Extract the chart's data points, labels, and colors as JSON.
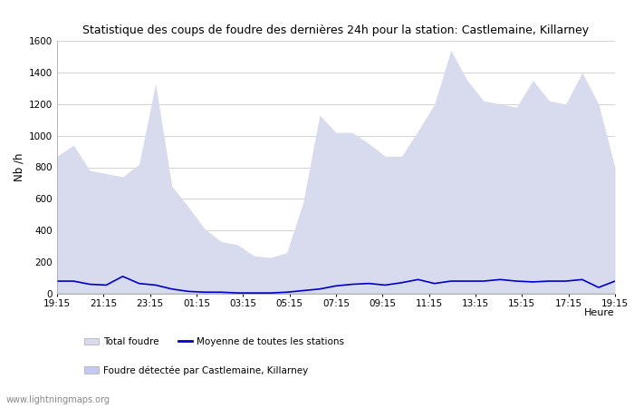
{
  "title": "Statistique des coups de foudre des dernières 24h pour la station: Castlemaine, Killarney",
  "xlabel": "Heure",
  "ylabel": "Nb /h",
  "ylim": [
    0,
    1600
  ],
  "yticks": [
    0,
    200,
    400,
    600,
    800,
    1000,
    1200,
    1400,
    1600
  ],
  "xtick_labels": [
    "19:15",
    "21:15",
    "23:15",
    "01:15",
    "03:15",
    "05:15",
    "07:15",
    "09:15",
    "11:15",
    "13:15",
    "15:15",
    "17:15",
    "19:15"
  ],
  "bg_color": "#ffffff",
  "grid_color": "#cccccc",
  "fill_total_color": "#d8daee",
  "fill_station_color": "#c4c8f4",
  "line_color": "#0000cc",
  "watermark": "www.lightningmaps.org",
  "legend_total": "Total foudre",
  "legend_avg": "Moyenne de toutes les stations",
  "legend_station": "Foudre détectée par Castlemaine, Killarney",
  "total_foudre": [
    870,
    940,
    780,
    760,
    740,
    820,
    1330,
    680,
    550,
    410,
    330,
    310,
    240,
    230,
    260,
    580,
    1130,
    1020,
    1020,
    950,
    870,
    870,
    1030,
    1200,
    1540,
    1350,
    1220,
    1200,
    1180,
    1350,
    1220,
    1200,
    1400,
    1200,
    800
  ],
  "avg_line": [
    80,
    80,
    60,
    55,
    110,
    65,
    55,
    30,
    15,
    10,
    10,
    5,
    5,
    5,
    10,
    20,
    30,
    50,
    60,
    65,
    55,
    70,
    90,
    65,
    80,
    80,
    80,
    90,
    80,
    75,
    80,
    80,
    90,
    40,
    80
  ],
  "station_foudre": [
    5,
    5,
    5,
    5,
    5,
    5,
    5,
    5,
    5,
    5,
    5,
    5,
    5,
    5,
    5,
    5,
    5,
    5,
    5,
    5,
    5,
    5,
    5,
    5,
    5,
    5,
    5,
    5,
    5,
    5,
    5,
    5,
    5,
    5,
    5
  ]
}
